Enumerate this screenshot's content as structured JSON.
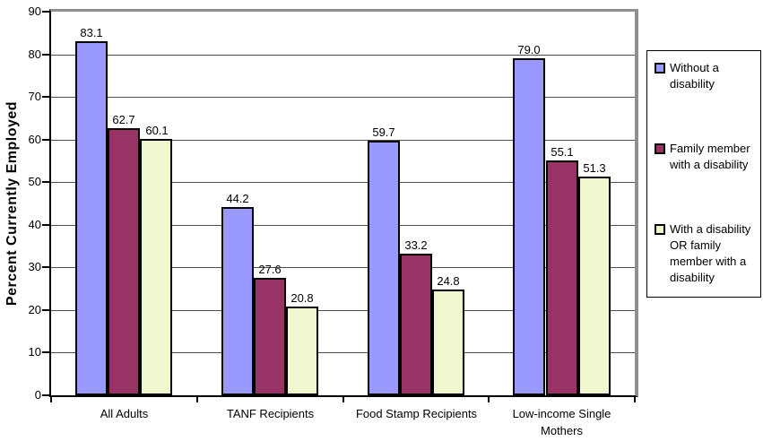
{
  "chart_data": {
    "type": "bar",
    "title": "",
    "ylabel": "Percent Currently Employed",
    "xlabel": "",
    "ylim": [
      0,
      90
    ],
    "ytick_step": 10,
    "grid": true,
    "legend_position": "right",
    "value_label_decimals": 1,
    "categories": [
      "All Adults",
      "TANF Recipients",
      "Food Stamp Recipients",
      "Low-income Single Mothers"
    ],
    "category_label_lines": [
      [
        "All Adults"
      ],
      [
        "TANF Recipients"
      ],
      [
        "Food Stamp Recipients"
      ],
      [
        "Low-income Single",
        "Mothers"
      ]
    ],
    "series": [
      {
        "name": "Without a disability",
        "label_lines": [
          "Without a",
          "disability"
        ],
        "color": "#9999FF",
        "values": [
          83.1,
          44.2,
          59.7,
          79.0
        ]
      },
      {
        "name": "Family member with a disability",
        "label_lines": [
          "Family member",
          "with a disability"
        ],
        "color": "#993366",
        "values": [
          62.7,
          27.6,
          33.2,
          55.1
        ]
      },
      {
        "name": "With a disability OR family member with a disability",
        "label_lines": [
          "With a disability",
          "OR family",
          "member with a",
          "disability"
        ],
        "color": "#F0F7CE",
        "values": [
          60.1,
          20.8,
          24.8,
          51.3
        ]
      }
    ]
  },
  "colors": {
    "background": "#FFFFFF",
    "bar_border": "#000000",
    "gridline": "#4D4D4D",
    "axis": "#000000",
    "plot_border_gray": "#8F8F8F"
  }
}
